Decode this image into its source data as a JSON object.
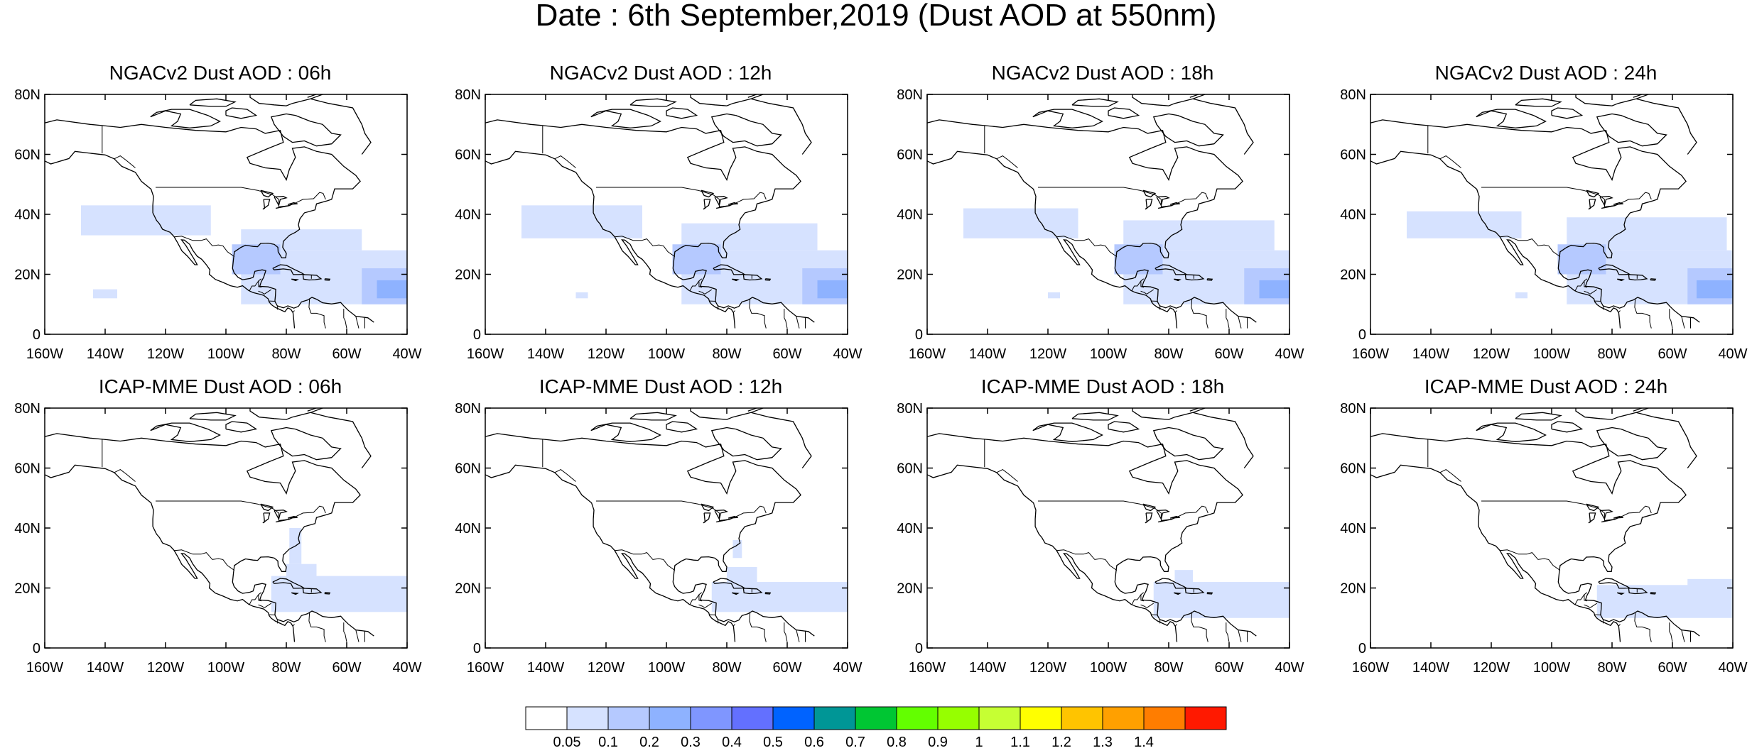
{
  "title": "Date : 6th September,2019 (Dust AOD at 550nm)",
  "map_extent": {
    "lon": [
      -160,
      -40
    ],
    "lat": [
      0,
      80
    ]
  },
  "lon_ticks": [
    {
      "value": -160,
      "label": "160W"
    },
    {
      "value": -140,
      "label": "140W"
    },
    {
      "value": -120,
      "label": "120W"
    },
    {
      "value": -100,
      "label": "100W"
    },
    {
      "value": -80,
      "label": "80W"
    },
    {
      "value": -60,
      "label": "60W"
    },
    {
      "value": -40,
      "label": "40W"
    }
  ],
  "lat_ticks": [
    {
      "value": 0,
      "label": "0"
    },
    {
      "value": 20,
      "label": "20N"
    },
    {
      "value": 40,
      "label": "40N"
    },
    {
      "value": 60,
      "label": "60N"
    },
    {
      "value": 80,
      "label": "80N"
    }
  ],
  "panels": [
    {
      "title": "NGACv2 Dust AOD : 06h",
      "model": "NGACv2",
      "hour": "06h",
      "dust_regions": [
        {
          "level": 1,
          "lon": [
            -148,
            -105
          ],
          "lat": [
            33,
            43
          ]
        },
        {
          "level": 1,
          "lon": [
            -95,
            -55
          ],
          "lat": [
            28,
            35
          ]
        },
        {
          "level": 1,
          "lon": [
            -95,
            -40
          ],
          "lat": [
            10,
            28
          ]
        },
        {
          "level": 2,
          "lon": [
            -98,
            -82
          ],
          "lat": [
            20,
            30
          ]
        },
        {
          "level": 2,
          "lon": [
            -55,
            -40
          ],
          "lat": [
            10,
            22
          ]
        },
        {
          "level": 3,
          "lon": [
            -50,
            -40
          ],
          "lat": [
            12,
            18
          ]
        },
        {
          "level": 1,
          "lon": [
            -144,
            -136
          ],
          "lat": [
            12,
            15
          ]
        }
      ]
    },
    {
      "title": "NGACv2 Dust AOD : 12h",
      "model": "NGACv2",
      "hour": "12h",
      "dust_regions": [
        {
          "level": 1,
          "lon": [
            -148,
            -108
          ],
          "lat": [
            32,
            43
          ]
        },
        {
          "level": 1,
          "lon": [
            -95,
            -50
          ],
          "lat": [
            28,
            37
          ]
        },
        {
          "level": 1,
          "lon": [
            -95,
            -40
          ],
          "lat": [
            10,
            28
          ]
        },
        {
          "level": 2,
          "lon": [
            -98,
            -82
          ],
          "lat": [
            20,
            30
          ]
        },
        {
          "level": 2,
          "lon": [
            -55,
            -40
          ],
          "lat": [
            10,
            22
          ]
        },
        {
          "level": 3,
          "lon": [
            -50,
            -40
          ],
          "lat": [
            12,
            18
          ]
        },
        {
          "level": 1,
          "lon": [
            -130,
            -126
          ],
          "lat": [
            12,
            14
          ]
        }
      ]
    },
    {
      "title": "NGACv2 Dust AOD : 18h",
      "model": "NGACv2",
      "hour": "18h",
      "dust_regions": [
        {
          "level": 1,
          "lon": [
            -148,
            -110
          ],
          "lat": [
            32,
            42
          ]
        },
        {
          "level": 1,
          "lon": [
            -95,
            -45
          ],
          "lat": [
            28,
            38
          ]
        },
        {
          "level": 1,
          "lon": [
            -95,
            -40
          ],
          "lat": [
            10,
            28
          ]
        },
        {
          "level": 2,
          "lon": [
            -98,
            -82
          ],
          "lat": [
            20,
            30
          ]
        },
        {
          "level": 2,
          "lon": [
            -55,
            -40
          ],
          "lat": [
            10,
            22
          ]
        },
        {
          "level": 3,
          "lon": [
            -50,
            -40
          ],
          "lat": [
            12,
            18
          ]
        },
        {
          "level": 1,
          "lon": [
            -120,
            -116
          ],
          "lat": [
            12,
            14
          ]
        }
      ]
    },
    {
      "title": "NGACv2 Dust AOD : 24h",
      "model": "NGACv2",
      "hour": "24h",
      "dust_regions": [
        {
          "level": 1,
          "lon": [
            -148,
            -110
          ],
          "lat": [
            32,
            41
          ]
        },
        {
          "level": 1,
          "lon": [
            -95,
            -42
          ],
          "lat": [
            28,
            39
          ]
        },
        {
          "level": 1,
          "lon": [
            -95,
            -40
          ],
          "lat": [
            10,
            28
          ]
        },
        {
          "level": 2,
          "lon": [
            -98,
            -82
          ],
          "lat": [
            20,
            30
          ]
        },
        {
          "level": 2,
          "lon": [
            -55,
            -40
          ],
          "lat": [
            10,
            22
          ]
        },
        {
          "level": 3,
          "lon": [
            -52,
            -40
          ],
          "lat": [
            12,
            18
          ]
        },
        {
          "level": 1,
          "lon": [
            -112,
            -108
          ],
          "lat": [
            12,
            14
          ]
        }
      ]
    },
    {
      "title": "ICAP-MME Dust AOD : 06h",
      "model": "ICAP-MME",
      "hour": "06h",
      "dust_regions": [
        {
          "level": 1,
          "lon": [
            -85,
            -40
          ],
          "lat": [
            12,
            24
          ]
        },
        {
          "level": 1,
          "lon": [
            -80,
            -70
          ],
          "lat": [
            20,
            28
          ]
        },
        {
          "level": 1,
          "lon": [
            -79,
            -75
          ],
          "lat": [
            28,
            40
          ]
        }
      ]
    },
    {
      "title": "ICAP-MME Dust AOD : 12h",
      "model": "ICAP-MME",
      "hour": "12h",
      "dust_regions": [
        {
          "level": 1,
          "lon": [
            -85,
            -40
          ],
          "lat": [
            12,
            22
          ]
        },
        {
          "level": 1,
          "lon": [
            -80,
            -70
          ],
          "lat": [
            20,
            27
          ]
        },
        {
          "level": 1,
          "lon": [
            -78,
            -75
          ],
          "lat": [
            30,
            36
          ]
        }
      ]
    },
    {
      "title": "ICAP-MME Dust AOD : 18h",
      "model": "ICAP-MME",
      "hour": "18h",
      "dust_regions": [
        {
          "level": 1,
          "lon": [
            -85,
            -40
          ],
          "lat": [
            10,
            22
          ]
        },
        {
          "level": 1,
          "lon": [
            -78,
            -72
          ],
          "lat": [
            20,
            26
          ]
        }
      ]
    },
    {
      "title": "ICAP-MME Dust AOD : 24h",
      "model": "ICAP-MME",
      "hour": "24h",
      "dust_regions": [
        {
          "level": 1,
          "lon": [
            -85,
            -40
          ],
          "lat": [
            10,
            21
          ]
        },
        {
          "level": 1,
          "lon": [
            -55,
            -40
          ],
          "lat": [
            18,
            23
          ]
        }
      ]
    }
  ],
  "colorbar": {
    "labels": [
      "0.05",
      "0.1",
      "0.2",
      "0.3",
      "0.4",
      "0.5",
      "0.6",
      "0.7",
      "0.8",
      "0.9",
      "1",
      "1.1",
      "1.2",
      "1.3",
      "1.4"
    ],
    "colors": [
      "#ffffff",
      "#d6e2ff",
      "#b5c9ff",
      "#8eb2ff",
      "#7f96ff",
      "#6370ff",
      "#0063ff",
      "#009696",
      "#00c633",
      "#63ff00",
      "#96ff00",
      "#c6ff33",
      "#ffff00",
      "#ffc400",
      "#ffa000",
      "#ff7d00",
      "#ff1900"
    ]
  }
}
